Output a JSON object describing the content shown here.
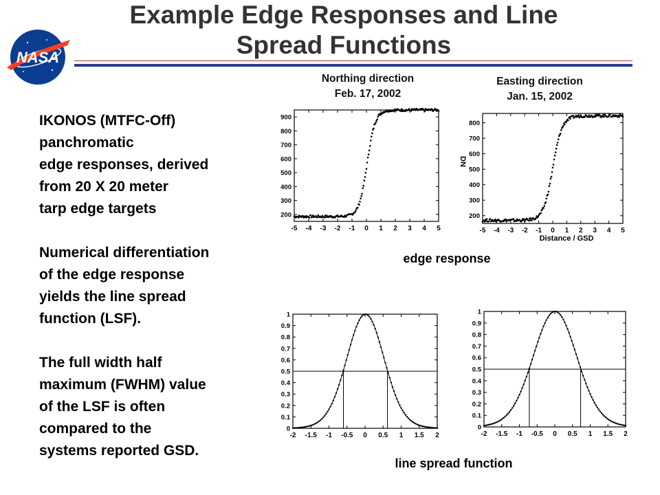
{
  "title_line1": "Example Edge Responses and Line",
  "title_line2": "Spread Functions",
  "logo_text": "NASA",
  "paragraphs": [
    "IKONOS (MTFC-Off)\npanchromatic\nedge responses, derived\nfrom 20 X 20 meter\ntarp edge targets",
    "Numerical differentiation\nof the edge response\nyields the line spread\nfunction (LSF).",
    "The full width half\nmaximum (FWHM) value\nof the LSF is often\ncompared to the\nsystems reported GSD."
  ],
  "northing_label": [
    "Northing direction",
    "Feb. 17, 2002"
  ],
  "easting_label": [
    "Easting direction",
    "Jan. 15, 2002"
  ],
  "edge_caption": "edge response",
  "lsf_caption": "line spread function",
  "chart_data": [
    {
      "type": "scatter",
      "title": "",
      "xlabel": "",
      "ylabel": "",
      "xlim": [
        -5,
        5
      ],
      "ylim": [
        150,
        950
      ],
      "xticks": [
        -5,
        -4,
        -3,
        -2,
        -1,
        0,
        1,
        2,
        3,
        4,
        5
      ],
      "yticks": [
        200,
        300,
        400,
        500,
        600,
        700,
        800,
        900
      ],
      "curve": {
        "low": 185,
        "high": 950,
        "center": 0.05,
        "scale": 0.28
      },
      "grid": false
    },
    {
      "type": "scatter",
      "title": "",
      "xlabel": "Distance / GSD",
      "ylabel": "DN",
      "xlim": [
        -5,
        5
      ],
      "ylim": [
        150,
        860
      ],
      "xticks": [
        -5,
        -4,
        -3,
        -2,
        -1,
        0,
        1,
        2,
        3,
        4,
        5
      ],
      "yticks": [
        200,
        300,
        400,
        500,
        600,
        700,
        800
      ],
      "curve": {
        "low": 170,
        "high": 845,
        "center": 0.0,
        "scale": 0.33
      },
      "grid": false
    },
    {
      "type": "line",
      "title": "",
      "xlabel": "",
      "ylabel": "",
      "xlim": [
        -2,
        2
      ],
      "ylim": [
        0,
        1
      ],
      "xticks": [
        -2,
        -1.5,
        -1,
        -0.5,
        0,
        0.5,
        1,
        1.5,
        2
      ],
      "yticks": [
        0,
        0.1,
        0.2,
        0.3,
        0.4,
        0.5,
        0.6,
        0.7,
        0.8,
        0.9,
        1
      ],
      "half_max": 0.5,
      "fwhm_bounds": [
        -0.6,
        0.62
      ],
      "grid": false
    },
    {
      "type": "line",
      "title": "",
      "xlabel": "",
      "ylabel": "",
      "xlim": [
        -2,
        2
      ],
      "ylim": [
        0,
        1
      ],
      "xticks": [
        -2,
        -1.5,
        -1,
        -0.5,
        0,
        0.5,
        1,
        1.5,
        2
      ],
      "yticks": [
        0,
        0.1,
        0.2,
        0.3,
        0.4,
        0.5,
        0.6,
        0.7,
        0.8,
        0.9,
        1
      ],
      "half_max": 0.5,
      "fwhm_bounds": [
        -0.72,
        0.73
      ],
      "grid": false
    }
  ]
}
